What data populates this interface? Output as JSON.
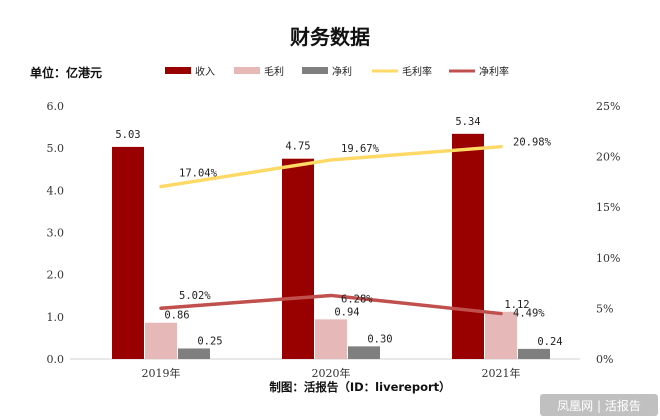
{
  "chart_data": {
    "type": "bar",
    "title": "财务数据",
    "unit_label": "单位：亿港元",
    "categories": [
      "2019年",
      "2020年",
      "2021年"
    ],
    "series": [
      {
        "name": "收入",
        "kind": "bar",
        "axis": "left",
        "color": "#990000",
        "values": [
          5.03,
          4.75,
          5.34
        ],
        "labels": [
          "5.03",
          "4.75",
          "5.34"
        ]
      },
      {
        "name": "毛利",
        "kind": "bar",
        "axis": "left",
        "color": "#e6b8b7",
        "values": [
          0.86,
          0.94,
          1.12
        ],
        "labels": [
          "0.86",
          "0.94",
          "1.12"
        ]
      },
      {
        "name": "净利",
        "kind": "bar",
        "axis": "left",
        "color": "#7f7f7f",
        "values": [
          0.25,
          0.3,
          0.24
        ],
        "labels": [
          "0.25",
          "0.30",
          "0.24"
        ]
      },
      {
        "name": "毛利率",
        "kind": "line",
        "axis": "right",
        "color": "#ffd966",
        "values": [
          17.04,
          19.67,
          20.98
        ],
        "labels": [
          "17.04%",
          "19.67%",
          "20.98%"
        ]
      },
      {
        "name": "净利率",
        "kind": "line",
        "axis": "right",
        "color": "#c0504d",
        "values": [
          5.02,
          6.28,
          4.49
        ],
        "labels": [
          "5.02%",
          "6.28%",
          "4.49%"
        ]
      }
    ],
    "y_left": {
      "ylim": [
        0,
        6
      ],
      "ticks": [
        "0.0",
        "1.0",
        "2.0",
        "3.0",
        "4.0",
        "5.0",
        "6.0"
      ]
    },
    "y_right": {
      "ylim": [
        0,
        25
      ],
      "ticks": [
        "0%",
        "5%",
        "10%",
        "15%",
        "20%",
        "25%"
      ]
    },
    "legend_position": "top",
    "grid": false,
    "source": "制图：活报告（ID：livereport）",
    "watermark": "凤凰网 | 活报告"
  }
}
